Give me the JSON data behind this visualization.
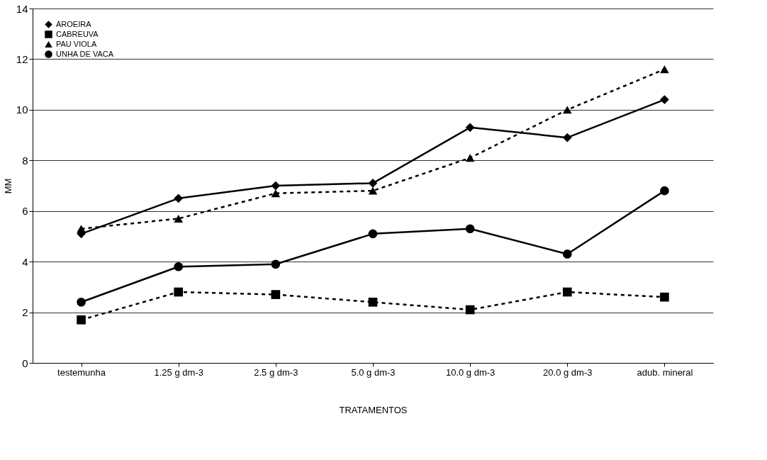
{
  "chart_data": {
    "type": "line",
    "xlabel": "TRATAMENTOS",
    "ylabel": "MM",
    "categories": [
      "testemunha",
      "1.25 g dm-3",
      "2.5   g dm-3",
      "5.0   g dm-3",
      "10.0 g dm-3",
      "20.0 g dm-3",
      "adub. mineral"
    ],
    "series": [
      {
        "name": "AROEIRA",
        "color": "#000000",
        "marker": "diamond",
        "line_style": "solid",
        "values": [
          5.1,
          6.5,
          7.0,
          7.1,
          9.3,
          8.9,
          10.4
        ]
      },
      {
        "name": "CABREUVA",
        "color": "#000000",
        "marker": "square",
        "line_style": "dashed",
        "values": [
          1.7,
          2.8,
          2.7,
          2.4,
          2.1,
          2.8,
          2.6
        ]
      },
      {
        "name": "PAU VIOLA",
        "color": "#000000",
        "marker": "triangle",
        "line_style": "dashed",
        "values": [
          5.3,
          5.7,
          6.7,
          6.8,
          8.1,
          10.0,
          11.6
        ]
      },
      {
        "name": "UNHA DE VACA",
        "color": "#000000",
        "marker": "circle",
        "line_style": "solid",
        "values": [
          2.4,
          3.8,
          3.9,
          5.1,
          5.3,
          4.3,
          6.8
        ]
      }
    ],
    "ylim": [
      0,
      14
    ],
    "yticks": [
      0,
      2,
      4,
      6,
      8,
      10,
      12,
      14
    ],
    "grid": "y",
    "legend": "top left"
  }
}
